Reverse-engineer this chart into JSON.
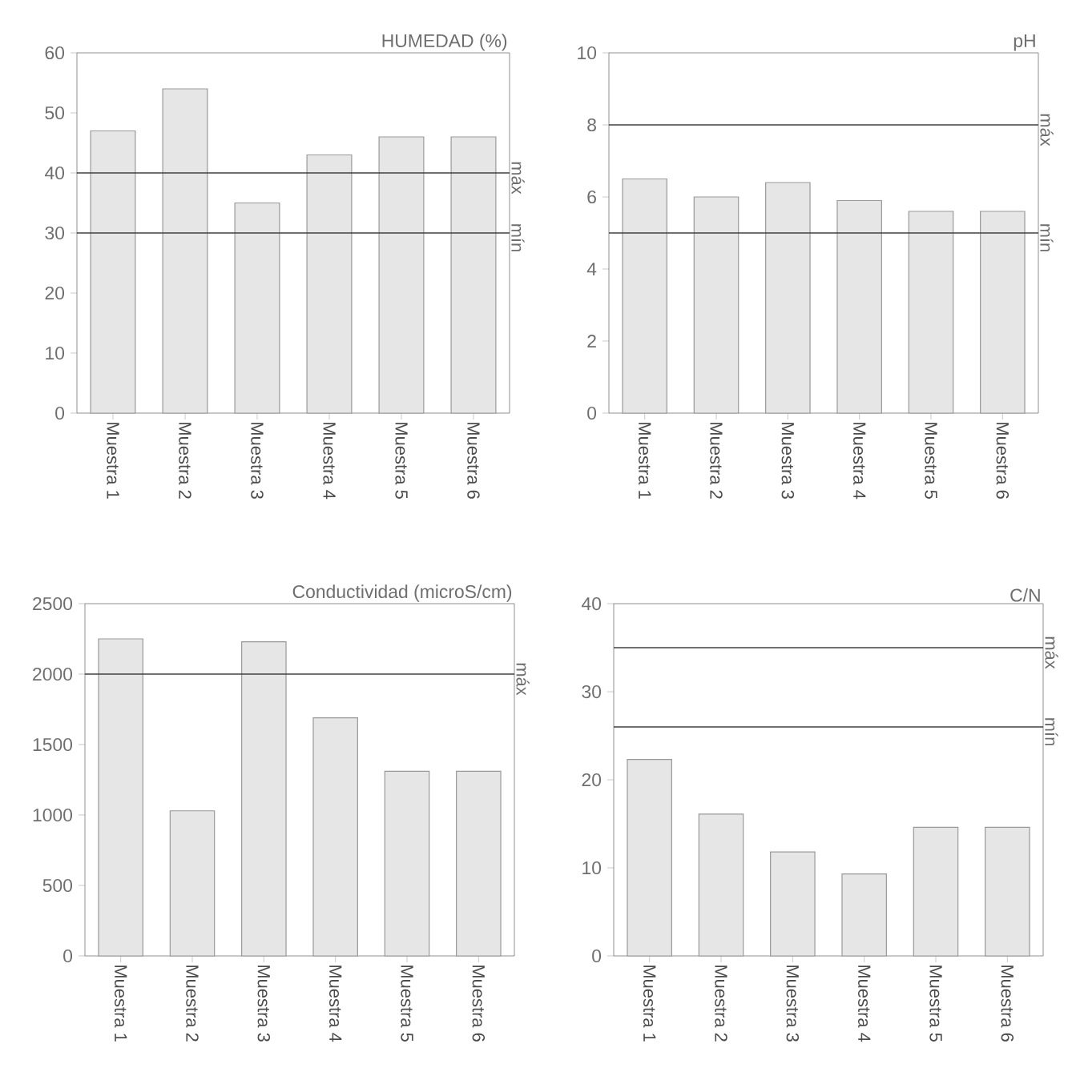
{
  "chart_data": [
    {
      "type": "bar",
      "title": "HUMEDAD (%)",
      "categories": [
        "Muestra 1",
        "Muestra 2",
        "Muestra 3",
        "Muestra 4",
        "Muestra 5",
        "Muestra 6"
      ],
      "values": [
        47,
        54,
        35,
        43,
        46,
        46
      ],
      "color": "#e6e6e6",
      "ylim": [
        0,
        60
      ],
      "yticks": [
        0,
        10,
        20,
        30,
        40,
        50,
        60
      ],
      "ref_lines": [
        {
          "axis": "y",
          "value": 40,
          "label": "máx"
        },
        {
          "axis": "y",
          "value": 30,
          "label": "mín"
        }
      ]
    },
    {
      "type": "bar",
      "title": "pH",
      "categories": [
        "Muestra 1",
        "Muestra 2",
        "Muestra 3",
        "Muestra 4",
        "Muestra 5",
        "Muestra 6"
      ],
      "values": [
        6.5,
        6.0,
        6.4,
        5.9,
        5.6,
        5.6
      ],
      "color": "#e6e6e6",
      "ylim": [
        0,
        10
      ],
      "yticks": [
        0,
        2,
        4,
        6,
        8,
        10
      ],
      "ref_lines": [
        {
          "axis": "y",
          "value": 8,
          "label": "máx"
        },
        {
          "axis": "y",
          "value": 5,
          "label": "mín"
        }
      ]
    },
    {
      "type": "bar",
      "title": "Conductividad (microS/cm)",
      "categories": [
        "Muestra 1",
        "Muestra 2",
        "Muestra 3",
        "Muestra 4",
        "Muestra 5",
        "Muestra 6"
      ],
      "values": [
        2250,
        1030,
        2230,
        1690,
        1310,
        1310
      ],
      "color": "#e6e6e6",
      "ylim": [
        0,
        2500
      ],
      "yticks": [
        0,
        500,
        1000,
        1500,
        2000,
        2500
      ],
      "ref_lines": [
        {
          "axis": "y",
          "value": 2000,
          "label": "máx"
        }
      ]
    },
    {
      "type": "bar",
      "title": "C/N",
      "categories": [
        "Muestra 1",
        "Muestra 2",
        "Muestra 3",
        "Muestra 4",
        "Muestra 5",
        "Muestra 6"
      ],
      "values": [
        22.3,
        16.1,
        11.8,
        9.3,
        14.6,
        14.6
      ],
      "color": "#e6e6e6",
      "ylim": [
        0,
        40
      ],
      "yticks": [
        0,
        10,
        20,
        30,
        40
      ],
      "ref_lines": [
        {
          "axis": "y",
          "value": 35,
          "label": "máx"
        },
        {
          "axis": "y",
          "value": 26,
          "label": "mín"
        }
      ]
    }
  ]
}
